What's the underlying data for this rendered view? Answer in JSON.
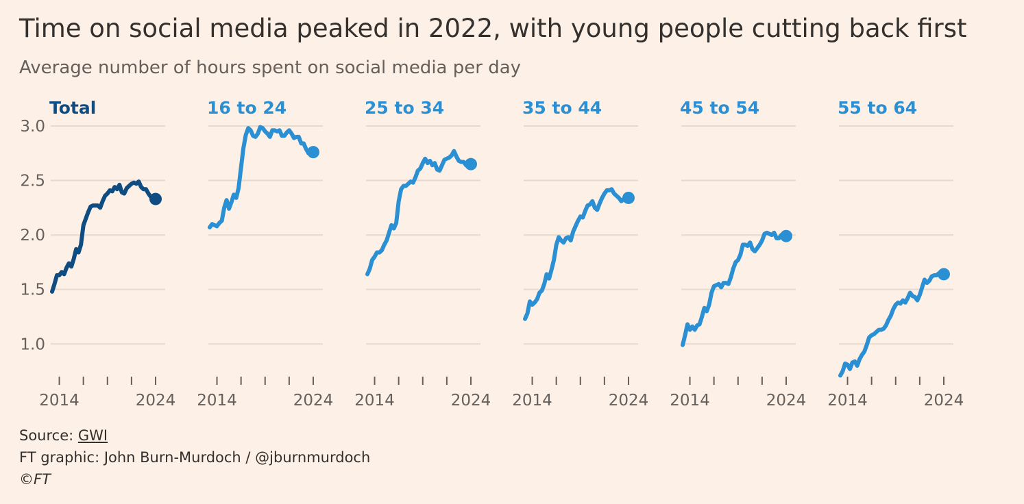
{
  "title": "Time on social media peaked in 2022, with young people cutting back first",
  "subtitle": "Average number of hours spent on social media per day",
  "footer": {
    "source_label": "Source: ",
    "source_link": "GWI",
    "credit": "FT graphic: John Burn-Murdoch / @jburnmurdoch",
    "copyright": "©FT"
  },
  "colors": {
    "total": "#0f4c81",
    "age": "#2b8fd3",
    "grid": "#e6d9ce",
    "axis_text": "#66605c"
  },
  "chart_data": {
    "type": "line",
    "title": "Time on social media peaked in 2022, with young people cutting back first",
    "subtitle": "Average number of hours spent on social media per day",
    "ylim": [
      0.7,
      3.05
    ],
    "yticks": [
      1.0,
      1.5,
      2.0,
      2.5,
      3.0
    ],
    "ytick_labels": [
      "1.0",
      "1.5",
      "2.0",
      "2.5",
      "3.0"
    ],
    "xlim": [
      2012.5,
      2025
    ],
    "xticks": [
      2014,
      2016.5,
      2019,
      2021.5,
      2024
    ],
    "xtick_labels": [
      "2014",
      "",
      "",
      "",
      "2024"
    ],
    "grid": true,
    "panels": [
      {
        "name": "Total",
        "color": "#0f4c81",
        "x": [
          2013.25,
          2013.5,
          2013.75,
          2014,
          2014.25,
          2014.5,
          2014.75,
          2015,
          2015.25,
          2015.5,
          2015.75,
          2016,
          2016.25,
          2016.5,
          2016.75,
          2017,
          2017.25,
          2017.5,
          2017.75,
          2018,
          2018.25,
          2018.5,
          2018.75,
          2019,
          2019.25,
          2019.5,
          2019.75,
          2020,
          2020.25,
          2020.5,
          2020.75,
          2021,
          2021.25,
          2021.5,
          2021.75,
          2022,
          2022.25,
          2022.5,
          2022.75,
          2023,
          2023.25,
          2023.5,
          2023.75,
          2024
        ],
        "values": [
          1.48,
          1.55,
          1.63,
          1.63,
          1.66,
          1.64,
          1.7,
          1.74,
          1.71,
          1.78,
          1.87,
          1.84,
          1.91,
          2.09,
          2.15,
          2.21,
          2.26,
          2.27,
          2.27,
          2.27,
          2.25,
          2.31,
          2.36,
          2.38,
          2.41,
          2.4,
          2.44,
          2.42,
          2.46,
          2.39,
          2.38,
          2.43,
          2.45,
          2.47,
          2.48,
          2.47,
          2.49,
          2.44,
          2.42,
          2.42,
          2.38,
          2.35,
          2.34,
          2.33
        ]
      },
      {
        "name": "16 to 24",
        "color": "#2b8fd3",
        "x": [
          2013.25,
          2013.5,
          2013.75,
          2014,
          2014.25,
          2014.5,
          2014.75,
          2015,
          2015.25,
          2015.5,
          2015.75,
          2016,
          2016.25,
          2016.5,
          2016.75,
          2017,
          2017.25,
          2017.5,
          2017.75,
          2018,
          2018.25,
          2018.5,
          2018.75,
          2019,
          2019.25,
          2019.5,
          2019.75,
          2020,
          2020.25,
          2020.5,
          2020.75,
          2021,
          2021.25,
          2021.5,
          2021.75,
          2022,
          2022.25,
          2022.5,
          2022.75,
          2023,
          2023.25,
          2023.5,
          2023.75,
          2024
        ],
        "values": [
          2.07,
          2.1,
          2.09,
          2.08,
          2.11,
          2.13,
          2.25,
          2.32,
          2.24,
          2.3,
          2.37,
          2.34,
          2.43,
          2.62,
          2.8,
          2.92,
          2.98,
          2.96,
          2.91,
          2.9,
          2.93,
          2.99,
          2.98,
          2.95,
          2.93,
          2.9,
          2.96,
          2.96,
          2.95,
          2.96,
          2.91,
          2.91,
          2.94,
          2.96,
          2.93,
          2.89,
          2.9,
          2.9,
          2.84,
          2.84,
          2.79,
          2.75,
          2.76,
          2.76
        ]
      },
      {
        "name": "25 to 34",
        "color": "#2b8fd3",
        "x": [
          2013.25,
          2013.5,
          2013.75,
          2014,
          2014.25,
          2014.5,
          2014.75,
          2015,
          2015.25,
          2015.5,
          2015.75,
          2016,
          2016.25,
          2016.5,
          2016.75,
          2017,
          2017.25,
          2017.5,
          2017.75,
          2018,
          2018.25,
          2018.5,
          2018.75,
          2019,
          2019.25,
          2019.5,
          2019.75,
          2020,
          2020.25,
          2020.5,
          2020.75,
          2021,
          2021.25,
          2021.5,
          2021.75,
          2022,
          2022.25,
          2022.5,
          2022.75,
          2023,
          2023.25,
          2023.5,
          2023.75,
          2024
        ],
        "values": [
          1.64,
          1.69,
          1.77,
          1.8,
          1.84,
          1.84,
          1.86,
          1.91,
          1.95,
          2.02,
          2.09,
          2.06,
          2.11,
          2.31,
          2.42,
          2.45,
          2.45,
          2.47,
          2.49,
          2.48,
          2.53,
          2.59,
          2.61,
          2.66,
          2.7,
          2.66,
          2.68,
          2.64,
          2.66,
          2.6,
          2.59,
          2.64,
          2.69,
          2.7,
          2.71,
          2.73,
          2.77,
          2.72,
          2.68,
          2.67,
          2.67,
          2.64,
          2.65,
          2.65
        ]
      },
      {
        "name": "35 to 44",
        "color": "#2b8fd3",
        "x": [
          2013.25,
          2013.5,
          2013.75,
          2014,
          2014.25,
          2014.5,
          2014.75,
          2015,
          2015.25,
          2015.5,
          2015.75,
          2016,
          2016.25,
          2016.5,
          2016.75,
          2017,
          2017.25,
          2017.5,
          2017.75,
          2018,
          2018.25,
          2018.5,
          2018.75,
          2019,
          2019.25,
          2019.5,
          2019.75,
          2020,
          2020.25,
          2020.5,
          2020.75,
          2021,
          2021.25,
          2021.5,
          2021.75,
          2022,
          2022.25,
          2022.5,
          2022.75,
          2023,
          2023.25,
          2023.5,
          2023.75,
          2024
        ],
        "values": [
          1.23,
          1.28,
          1.39,
          1.36,
          1.38,
          1.41,
          1.47,
          1.49,
          1.55,
          1.64,
          1.6,
          1.68,
          1.77,
          1.91,
          1.98,
          1.95,
          1.93,
          1.97,
          1.98,
          1.95,
          2.03,
          2.08,
          2.13,
          2.17,
          2.16,
          2.22,
          2.27,
          2.28,
          2.31,
          2.25,
          2.23,
          2.29,
          2.34,
          2.38,
          2.41,
          2.41,
          2.42,
          2.38,
          2.36,
          2.34,
          2.31,
          2.33,
          2.34,
          2.34
        ]
      },
      {
        "name": "45 to 54",
        "color": "#2b8fd3",
        "x": [
          2013.25,
          2013.5,
          2013.75,
          2014,
          2014.25,
          2014.5,
          2014.75,
          2015,
          2015.25,
          2015.5,
          2015.75,
          2016,
          2016.25,
          2016.5,
          2016.75,
          2017,
          2017.25,
          2017.5,
          2017.75,
          2018,
          2018.25,
          2018.5,
          2018.75,
          2019,
          2019.25,
          2019.5,
          2019.75,
          2020,
          2020.25,
          2020.5,
          2020.75,
          2021,
          2021.25,
          2021.5,
          2021.75,
          2022,
          2022.25,
          2022.5,
          2022.75,
          2023,
          2023.25,
          2023.5,
          2023.75,
          2024
        ],
        "values": [
          0.99,
          1.08,
          1.18,
          1.13,
          1.16,
          1.13,
          1.17,
          1.18,
          1.25,
          1.33,
          1.3,
          1.36,
          1.47,
          1.53,
          1.54,
          1.55,
          1.52,
          1.56,
          1.56,
          1.55,
          1.61,
          1.69,
          1.75,
          1.77,
          1.82,
          1.91,
          1.91,
          1.9,
          1.93,
          1.87,
          1.85,
          1.88,
          1.91,
          1.95,
          2.01,
          2.02,
          2.01,
          2.0,
          2.02,
          1.97,
          1.97,
          2.0,
          1.99,
          1.99
        ]
      },
      {
        "name": "55 to 64",
        "color": "#2b8fd3",
        "x": [
          2013.25,
          2013.5,
          2013.75,
          2014,
          2014.25,
          2014.5,
          2014.75,
          2015,
          2015.25,
          2015.5,
          2015.75,
          2016,
          2016.25,
          2016.5,
          2016.75,
          2017,
          2017.25,
          2017.5,
          2017.75,
          2018,
          2018.25,
          2018.5,
          2018.75,
          2019,
          2019.25,
          2019.5,
          2019.75,
          2020,
          2020.25,
          2020.5,
          2020.75,
          2021,
          2021.25,
          2021.5,
          2021.75,
          2022,
          2022.25,
          2022.5,
          2022.75,
          2023,
          2023.25,
          2023.5,
          2023.75,
          2024
        ],
        "values": [
          0.71,
          0.75,
          0.82,
          0.81,
          0.77,
          0.83,
          0.84,
          0.8,
          0.86,
          0.9,
          0.93,
          0.99,
          1.06,
          1.08,
          1.09,
          1.11,
          1.13,
          1.13,
          1.14,
          1.17,
          1.22,
          1.26,
          1.32,
          1.36,
          1.38,
          1.37,
          1.4,
          1.38,
          1.42,
          1.47,
          1.44,
          1.43,
          1.4,
          1.45,
          1.52,
          1.59,
          1.56,
          1.58,
          1.62,
          1.63,
          1.63,
          1.65,
          1.64,
          1.64
        ]
      }
    ]
  }
}
